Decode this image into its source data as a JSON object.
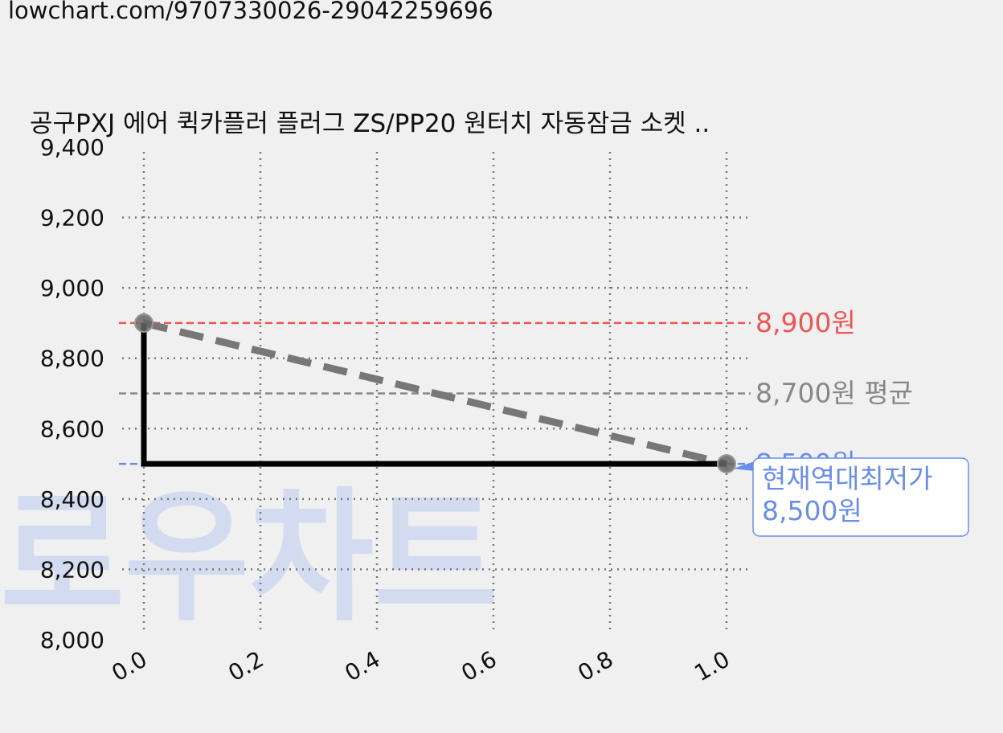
{
  "url_text": "lowchart.com/9707330026-29042259696",
  "watermark": "로우차트",
  "chart_data": {
    "type": "line",
    "title": "공구PXJ 에어 퀵카플러 플러그 ZS/PP20 원터치 자동잠금 소켓 ..",
    "xlabel": "",
    "ylabel": "",
    "xlim": [
      0.0,
      1.0
    ],
    "ylim": [
      8000,
      9400
    ],
    "x_ticks": [
      "0.0",
      "0.2",
      "0.4",
      "0.6",
      "0.8",
      "1.0"
    ],
    "y_ticks": [
      "8,000",
      "8,200",
      "8,400",
      "8,600",
      "8,800",
      "9,000",
      "9,200",
      "9,400"
    ],
    "grid": true,
    "series": [
      {
        "style": "step",
        "color": "#000000",
        "points": [
          [
            0.0,
            8900
          ],
          [
            0.0,
            8500
          ],
          [
            1.0,
            8500
          ]
        ]
      },
      {
        "style": "dashed-trend",
        "color": "#777777",
        "points": [
          [
            0.0,
            8900
          ],
          [
            1.0,
            8500
          ]
        ]
      }
    ],
    "reference_lines": [
      {
        "value": 8900,
        "label": "8,900원",
        "color": "#ee5555"
      },
      {
        "value": 8700,
        "label": "8,700원 평균",
        "color": "#888888"
      },
      {
        "value": 8500,
        "label": "8,500원",
        "color": "#6a8ee8"
      }
    ],
    "annotation": {
      "lines": [
        "현재역대최저가",
        "8,500원"
      ],
      "x": 1.0,
      "y": 8500,
      "color": "#6a8ee8"
    }
  }
}
